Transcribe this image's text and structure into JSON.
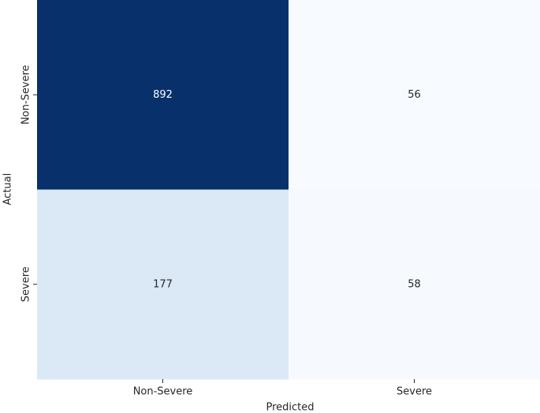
{
  "chart_data": {
    "type": "heatmap",
    "x_categories": [
      "Non-Severe",
      "Severe"
    ],
    "y_categories": [
      "Non-Severe",
      "Severe"
    ],
    "values": [
      [
        892,
        56
      ],
      [
        177,
        58
      ]
    ],
    "colors": [
      [
        "#08306b",
        "#f7fbff"
      ],
      [
        "#dbe9f6",
        "#f6faff"
      ]
    ],
    "xlabel": "Predicted",
    "ylabel": "Actual"
  }
}
